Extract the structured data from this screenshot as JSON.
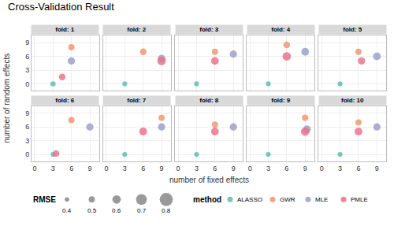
{
  "chart_data": {
    "type": "bubble",
    "title": "Cross-Validation Result",
    "xlabel": "number of fixed effects",
    "ylabel": "number of random effects",
    "xlim": [
      -0.5,
      10.5
    ],
    "ylim": [
      -1.5,
      10.5
    ],
    "xticks": [
      0,
      3,
      6,
      9
    ],
    "yticks": [
      0,
      3,
      6,
      9
    ],
    "grid": true,
    "series": [
      {
        "name": "ALASSO",
        "color": "#5dbcac"
      },
      {
        "name": "GWR",
        "color": "#f0956a"
      },
      {
        "name": "MLE",
        "color": "#9b9ec8"
      },
      {
        "name": "PMLE",
        "color": "#e8708a"
      }
    ],
    "legend_title": "method",
    "size_legend": {
      "title": "RMSE",
      "values": [
        0.4,
        0.5,
        0.6,
        0.7,
        0.8
      ]
    },
    "panels": [
      {
        "title": "fold: 1",
        "x": [
          3,
          6,
          6,
          4.5
        ],
        "y": [
          0,
          8,
          5,
          1.5
        ],
        "rmse": [
          0.45,
          0.5,
          0.55,
          0.52
        ]
      },
      {
        "title": "fold: 2",
        "x": [
          3,
          6,
          9,
          9
        ],
        "y": [
          0,
          7,
          5.5,
          5
        ],
        "rmse": [
          0.43,
          0.52,
          0.57,
          0.6
        ]
      },
      {
        "title": "fold: 3",
        "x": [
          3,
          6,
          9,
          6
        ],
        "y": [
          0,
          7,
          6.5,
          5
        ],
        "rmse": [
          0.43,
          0.5,
          0.55,
          0.57
        ]
      },
      {
        "title": "fold: 4",
        "x": [
          3,
          6,
          9,
          6
        ],
        "y": [
          0,
          8.5,
          7,
          6
        ],
        "rmse": [
          0.43,
          0.52,
          0.57,
          0.6
        ]
      },
      {
        "title": "fold: 5",
        "x": [
          3,
          6,
          9,
          6.5
        ],
        "y": [
          0,
          7,
          6,
          5
        ],
        "rmse": [
          0.43,
          0.5,
          0.57,
          0.55
        ]
      },
      {
        "title": "fold: 6",
        "x": [
          3,
          6,
          9,
          3.5
        ],
        "y": [
          0,
          7.5,
          6,
          0.2
        ],
        "rmse": [
          0.43,
          0.5,
          0.55,
          0.52
        ]
      },
      {
        "title": "fold: 7",
        "x": [
          3,
          9,
          9,
          6
        ],
        "y": [
          0,
          8,
          6,
          5
        ],
        "rmse": [
          0.43,
          0.5,
          0.55,
          0.57
        ]
      },
      {
        "title": "fold: 8",
        "x": [
          3,
          6,
          9,
          6
        ],
        "y": [
          0,
          6.5,
          6,
          5
        ],
        "rmse": [
          0.43,
          0.5,
          0.55,
          0.57
        ]
      },
      {
        "title": "fold: 9",
        "x": [
          3,
          9,
          9.3,
          9
        ],
        "y": [
          0,
          8,
          5.5,
          5
        ],
        "rmse": [
          0.43,
          0.52,
          0.57,
          0.6
        ]
      },
      {
        "title": "fold: 10",
        "x": [
          3,
          6,
          9,
          6
        ],
        "y": [
          0,
          7,
          6,
          5
        ],
        "rmse": [
          0.43,
          0.5,
          0.55,
          0.57
        ]
      }
    ]
  }
}
